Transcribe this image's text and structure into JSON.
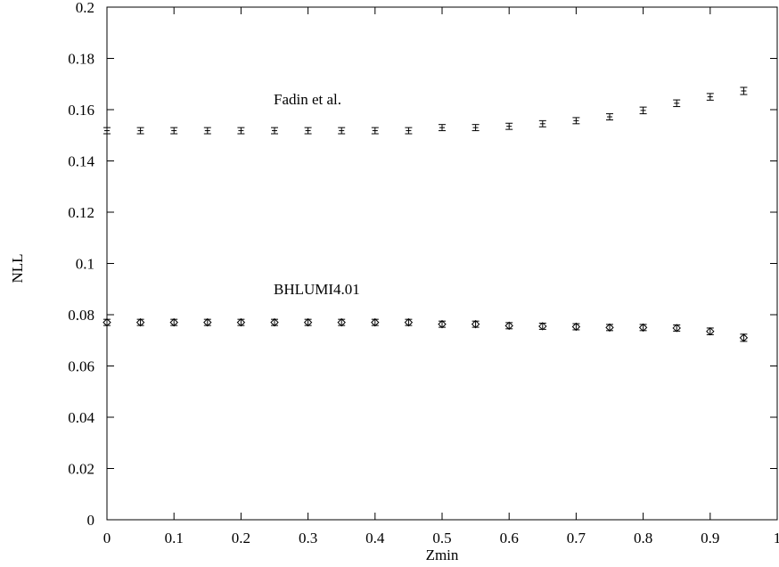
{
  "chart_data": {
    "type": "scatter",
    "title": "",
    "xlabel": "Zmin",
    "ylabel": "NLL",
    "xlim": [
      0,
      1
    ],
    "ylim": [
      0,
      0.2
    ],
    "grid": false,
    "x_ticks": [
      "0",
      "0.1",
      "0.2",
      "0.3",
      "0.4",
      "0.5",
      "0.6",
      "0.7",
      "0.8",
      "0.9",
      "1"
    ],
    "y_ticks": [
      "0",
      "0.02",
      "0.04",
      "0.06",
      "0.08",
      "0.1",
      "0.12",
      "0.14",
      "0.16",
      "0.18",
      "0.2"
    ],
    "series": [
      {
        "name": "Fadin et al.",
        "marker": "plus-errorbar",
        "x": [
          0,
          0.05,
          0.1,
          0.15,
          0.2,
          0.25,
          0.3,
          0.35,
          0.4,
          0.45,
          0.5,
          0.55,
          0.6,
          0.65,
          0.7,
          0.75,
          0.8,
          0.85,
          0.9,
          0.95
        ],
        "y": [
          0.1518,
          0.1518,
          0.1518,
          0.1518,
          0.1518,
          0.1518,
          0.1518,
          0.1518,
          0.1518,
          0.1518,
          0.153,
          0.153,
          0.1535,
          0.1545,
          0.1557,
          0.1572,
          0.1597,
          0.1625,
          0.165,
          0.1673
        ],
        "err": [
          0.0012,
          0.0012,
          0.0012,
          0.0012,
          0.0012,
          0.0012,
          0.0012,
          0.0012,
          0.0012,
          0.0012,
          0.0012,
          0.0012,
          0.0012,
          0.0012,
          0.0012,
          0.0012,
          0.0013,
          0.0013,
          0.0013,
          0.0014
        ]
      },
      {
        "name": "BHLUMI4.01",
        "marker": "diamond-errorbar",
        "x": [
          0,
          0.05,
          0.1,
          0.15,
          0.2,
          0.25,
          0.3,
          0.35,
          0.4,
          0.45,
          0.5,
          0.55,
          0.6,
          0.65,
          0.7,
          0.75,
          0.8,
          0.85,
          0.9,
          0.95
        ],
        "y": [
          0.077,
          0.077,
          0.077,
          0.077,
          0.077,
          0.077,
          0.077,
          0.077,
          0.077,
          0.077,
          0.0763,
          0.0763,
          0.0757,
          0.0755,
          0.0753,
          0.075,
          0.075,
          0.0748,
          0.0735,
          0.071
        ],
        "err": [
          0.0012,
          0.0012,
          0.0012,
          0.0012,
          0.0012,
          0.0012,
          0.0012,
          0.0012,
          0.0012,
          0.0012,
          0.0012,
          0.0012,
          0.0012,
          0.0012,
          0.0012,
          0.0012,
          0.0012,
          0.0012,
          0.0013,
          0.0014
        ]
      }
    ]
  }
}
